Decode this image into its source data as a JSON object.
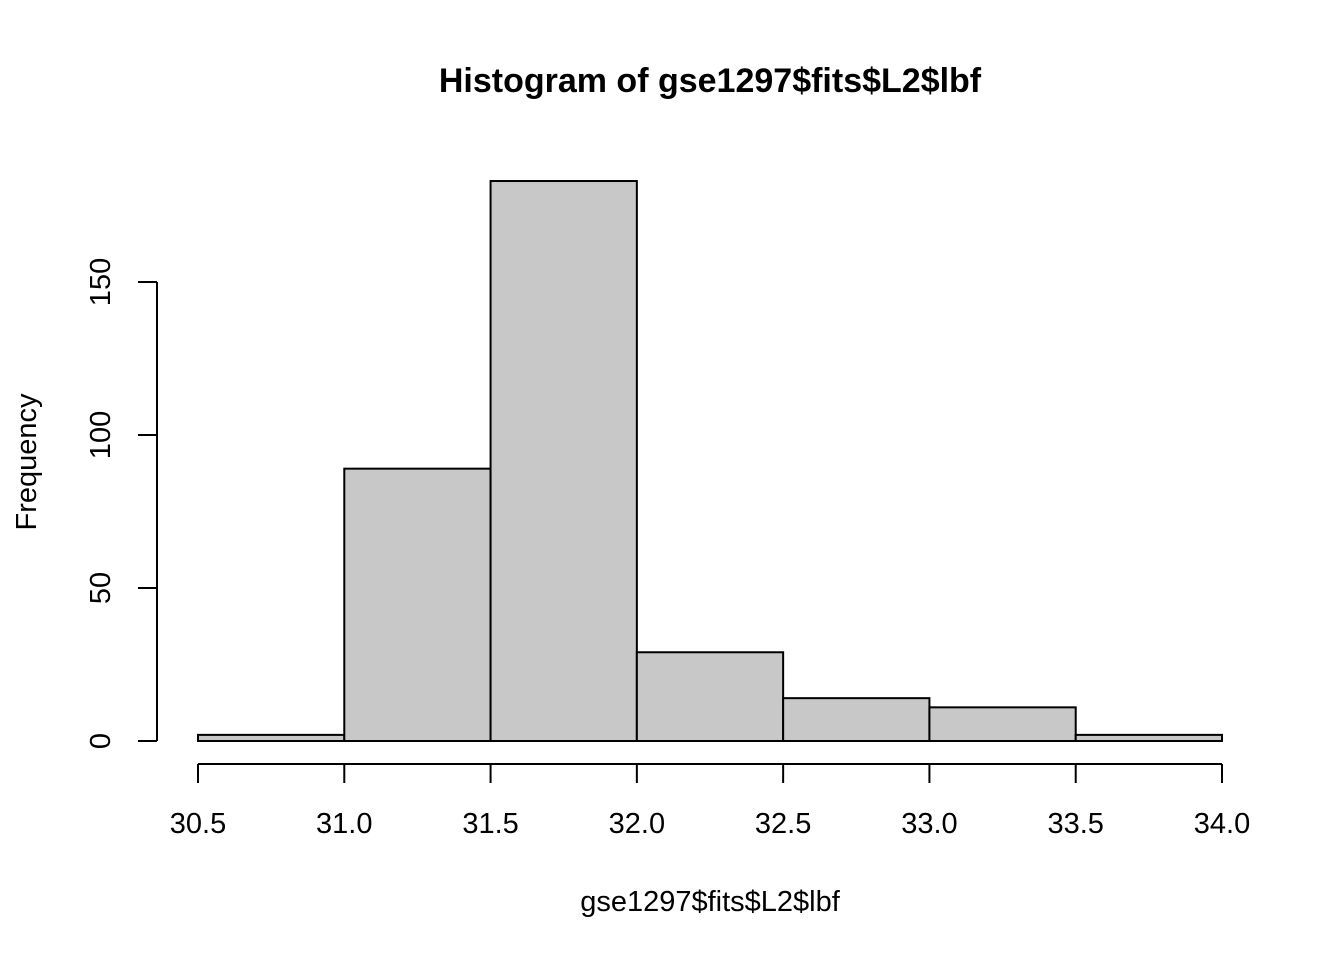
{
  "chart_data": {
    "type": "bar",
    "title": "Histogram of gse1297$fits$L2$lbf",
    "xlabel": "gse1297$fits$L2$lbf",
    "ylabel": "Frequency",
    "bins": [
      {
        "start": 30.5,
        "end": 31.0,
        "count": 2
      },
      {
        "start": 31.0,
        "end": 31.5,
        "count": 89
      },
      {
        "start": 31.5,
        "end": 32.0,
        "count": 183
      },
      {
        "start": 32.0,
        "end": 32.5,
        "count": 29
      },
      {
        "start": 32.5,
        "end": 33.0,
        "count": 14
      },
      {
        "start": 33.0,
        "end": 33.5,
        "count": 11
      },
      {
        "start": 33.5,
        "end": 34.0,
        "count": 2
      }
    ],
    "x_ticks": [
      "30.5",
      "31.0",
      "31.5",
      "32.0",
      "32.5",
      "33.0",
      "33.5",
      "34.0"
    ],
    "y_ticks": [
      "0",
      "50",
      "100",
      "150"
    ],
    "xlim": [
      30.5,
      34.0
    ],
    "ylim": [
      0,
      183
    ],
    "grid": false,
    "colors": {
      "bar_fill": "#c8c8c8",
      "bar_stroke": "#000000",
      "axis": "#000000",
      "background": "#ffffff"
    }
  }
}
